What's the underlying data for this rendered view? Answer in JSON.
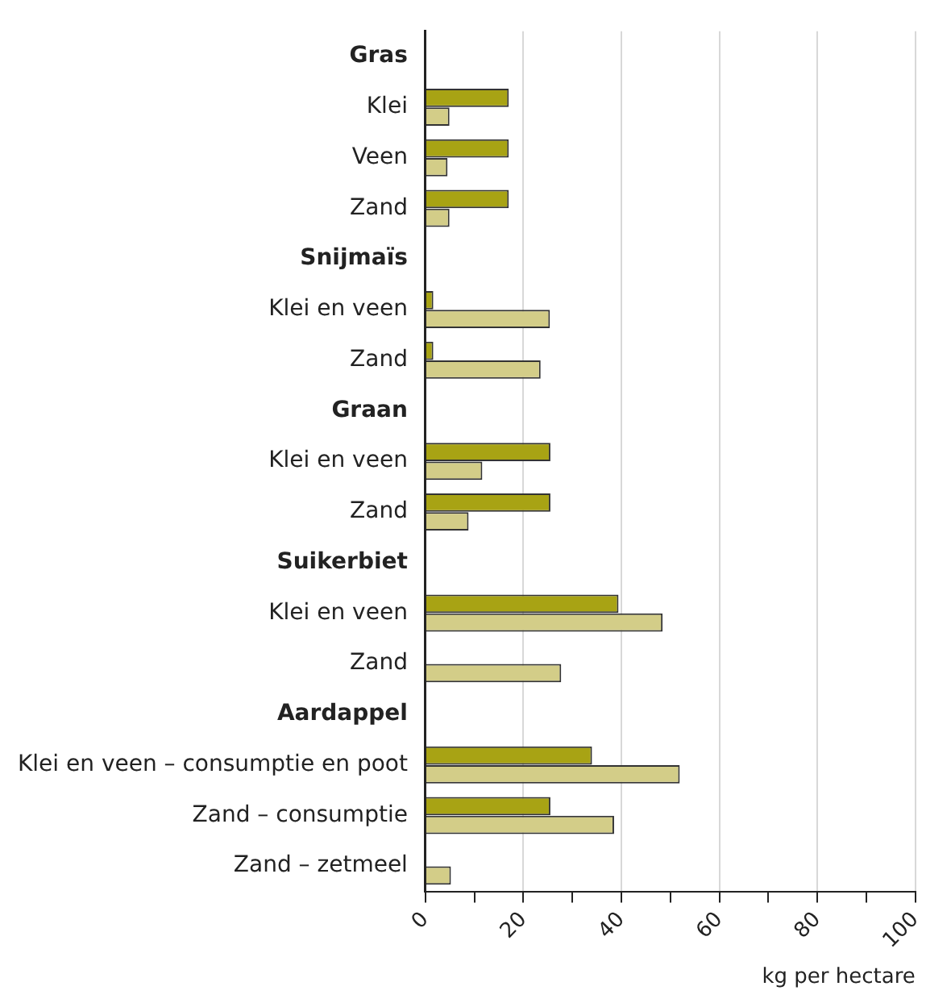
{
  "chart_data": {
    "type": "bar",
    "orientation": "horizontal",
    "xlabel": "kg per hectare",
    "categories": [
      "Gras",
      "Klei",
      "Veen",
      "Zand",
      "Snijmaïs",
      "Klei en veen",
      "Zand",
      "Graan",
      "Klei en veen",
      "Zand",
      "Suikerbiet",
      "Klei en veen",
      "Zand",
      "Aardappel",
      "Klei en veen – consumptie en poot",
      "Zand – consumptie",
      "Zand – zetmeel"
    ],
    "series": [
      {
        "color": "#a8a314",
        "values": [
          null,
          17,
          17,
          17,
          null,
          1.6,
          1.6,
          null,
          25.5,
          25.5,
          null,
          39.4,
          null,
          null,
          34,
          25.5,
          null
        ]
      },
      {
        "color": "#d3cd88",
        "values": [
          null,
          4.9,
          4.5,
          4.9,
          null,
          25.4,
          23.5,
          null,
          11.6,
          8.8,
          null,
          48.4,
          27.7,
          null,
          51.9,
          38.5,
          5.2
        ]
      }
    ],
    "xlim": [
      0,
      100
    ],
    "xticks": [
      0,
      {
        "value": 10,
        "label": null
      },
      20,
      {
        "value": 30,
        "label": null
      },
      40,
      {
        "value": 50,
        "label": null
      },
      60,
      {
        "value": 70,
        "label": null
      },
      80,
      {
        "value": 90,
        "label": null
      },
      100
    ],
    "grid": "x",
    "legend": false
  }
}
